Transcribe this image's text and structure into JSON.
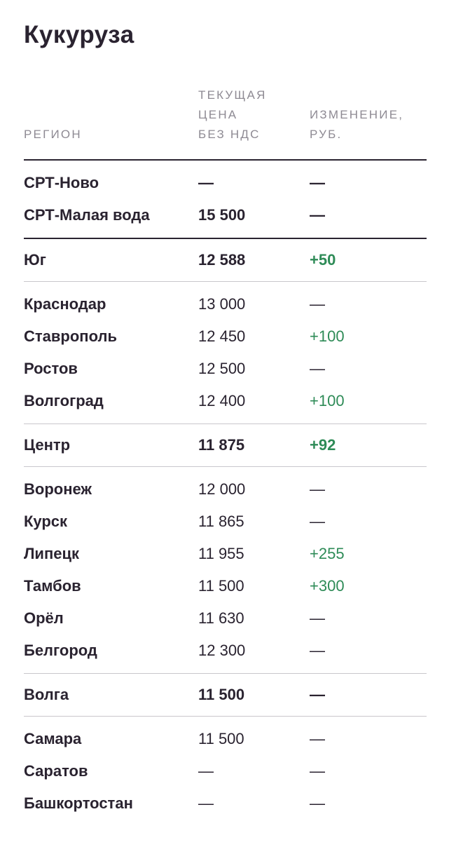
{
  "title": "Кукуруза",
  "headers": {
    "region": "РЕГИОН",
    "price_lines": [
      "ТЕКУЩАЯ",
      "ЦЕНА",
      "БЕЗ НДС"
    ],
    "change_lines": [
      "ИЗМЕНЕНИЕ,",
      "РУБ."
    ]
  },
  "colors": {
    "text": "#2a2330",
    "header": "#8e8a93",
    "positive": "#2e8b57",
    "divider": "#c9c7cc"
  },
  "sections": [
    {
      "kind": "plain",
      "rows": [
        {
          "region": "СРТ-Ново",
          "price": "—",
          "change": "—",
          "bold": true
        },
        {
          "region": "СРТ-Малая вода",
          "price": "15 500",
          "change": "—",
          "bold": true
        }
      ]
    },
    {
      "kind": "group",
      "group": {
        "region": "Юг",
        "price": "12 588",
        "change": "+50"
      },
      "rows": [
        {
          "region": "Краснодар",
          "price": "13 000",
          "change": "—"
        },
        {
          "region": "Ставрополь",
          "price": "12 450",
          "change": "+100"
        },
        {
          "region": "Ростов",
          "price": "12 500",
          "change": "—"
        },
        {
          "region": "Волгоград",
          "price": "12 400",
          "change": "+100"
        }
      ]
    },
    {
      "kind": "group",
      "group": {
        "region": "Центр",
        "price": "11 875",
        "change": "+92"
      },
      "rows": [
        {
          "region": "Воронеж",
          "price": "12 000",
          "change": "—"
        },
        {
          "region": "Курск",
          "price": "11 865",
          "change": "—"
        },
        {
          "region": "Липецк",
          "price": "11 955",
          "change": "+255"
        },
        {
          "region": "Тамбов",
          "price": "11 500",
          "change": "+300"
        },
        {
          "region": "Орёл",
          "price": "11 630",
          "change": "—"
        },
        {
          "region": "Белгород",
          "price": "12 300",
          "change": "—"
        }
      ]
    },
    {
      "kind": "group",
      "group": {
        "region": "Волга",
        "price": "11 500",
        "change": "—"
      },
      "rows": [
        {
          "region": "Самара",
          "price": "11 500",
          "change": "—"
        },
        {
          "region": "Саратов",
          "price": "—",
          "change": "—"
        },
        {
          "region": "Башкортостан",
          "price": "—",
          "change": "—"
        }
      ]
    }
  ]
}
